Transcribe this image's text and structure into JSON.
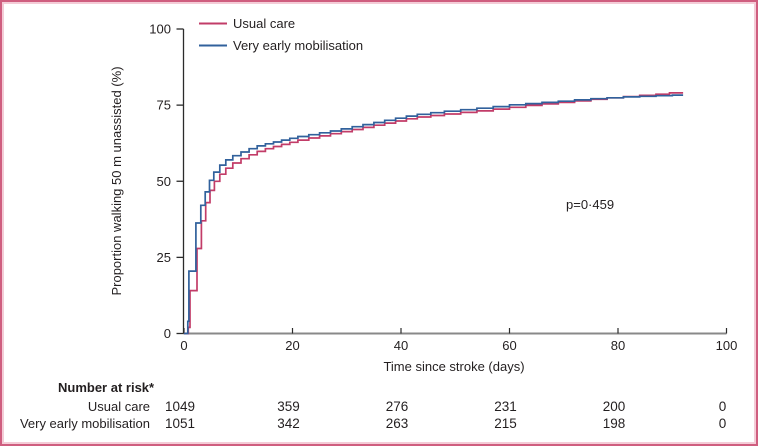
{
  "figure": {
    "border_color": "#cf5e7f",
    "inner_border_color": "#f4ccd7"
  },
  "legend": {
    "items": [
      {
        "label": "Usual care",
        "color": "#c23c68"
      },
      {
        "label": "Very early mobilisation",
        "color": "#31619c"
      }
    ]
  },
  "annotation": {
    "p_value": "p=0·459"
  },
  "chart_data": {
    "type": "line",
    "subtype": "step-cumulative-incidence",
    "title": "",
    "xlabel": "Time since stroke (days)",
    "ylabel": "Proportion walking 50 m unassisted (%)",
    "xlim": [
      0,
      100
    ],
    "ylim": [
      0,
      100
    ],
    "x_ticks": [
      0,
      20,
      40,
      60,
      80,
      100
    ],
    "y_ticks": [
      0,
      25,
      50,
      75,
      100
    ],
    "grid": false,
    "legend_position": "top-left-inside",
    "series": [
      {
        "name": "Usual care",
        "color": "#c23c68",
        "points": [
          [
            0,
            0
          ],
          [
            0.8,
            2
          ],
          [
            1.1,
            14.1
          ],
          [
            2.4,
            27.9
          ],
          [
            3.2,
            37
          ],
          [
            4,
            43
          ],
          [
            4.8,
            47
          ],
          [
            5.6,
            50
          ],
          [
            6.6,
            52.3
          ],
          [
            7.7,
            54.3
          ],
          [
            9,
            56
          ],
          [
            10.5,
            57.4
          ],
          [
            12,
            58.7
          ],
          [
            13.5,
            59.8
          ],
          [
            15,
            60.7
          ],
          [
            16.5,
            61.4
          ],
          [
            18,
            62.1
          ],
          [
            19.5,
            62.8
          ],
          [
            21,
            63.5
          ],
          [
            23,
            64.2
          ],
          [
            25,
            64.9
          ],
          [
            27,
            65.6
          ],
          [
            29,
            66.3
          ],
          [
            31,
            67
          ],
          [
            33,
            67.7
          ],
          [
            35,
            68.4
          ],
          [
            37,
            69.1
          ],
          [
            39,
            69.8
          ],
          [
            41,
            70.5
          ],
          [
            43,
            71.1
          ],
          [
            45.5,
            71.6
          ],
          [
            48,
            72.1
          ],
          [
            51,
            72.6
          ],
          [
            54,
            73.1
          ],
          [
            57,
            73.7
          ],
          [
            60,
            74.3
          ],
          [
            63,
            74.9
          ],
          [
            66,
            75.4
          ],
          [
            69,
            75.9
          ],
          [
            72,
            76.4
          ],
          [
            75,
            76.9
          ],
          [
            78,
            77.4
          ],
          [
            81,
            77.8
          ],
          [
            84,
            78.2
          ],
          [
            87,
            78.6
          ],
          [
            89.5,
            79
          ],
          [
            92,
            79
          ]
        ]
      },
      {
        "name": "Very early mobilisation",
        "color": "#31619c",
        "points": [
          [
            0,
            0
          ],
          [
            0.7,
            4
          ],
          [
            0.9,
            20.5
          ],
          [
            2.2,
            36.3
          ],
          [
            3.1,
            42.1
          ],
          [
            3.9,
            46.5
          ],
          [
            4.7,
            50.3
          ],
          [
            5.5,
            53
          ],
          [
            6.6,
            55.3
          ],
          [
            7.7,
            57
          ],
          [
            9,
            58.4
          ],
          [
            10.5,
            59.6
          ],
          [
            12,
            60.7
          ],
          [
            13.5,
            61.6
          ],
          [
            15,
            62.3
          ],
          [
            16.5,
            62.9
          ],
          [
            18,
            63.5
          ],
          [
            19.5,
            64.1
          ],
          [
            21,
            64.7
          ],
          [
            23,
            65.3
          ],
          [
            25,
            65.9
          ],
          [
            27,
            66.5
          ],
          [
            29,
            67.2
          ],
          [
            31,
            67.9
          ],
          [
            33,
            68.6
          ],
          [
            35,
            69.3
          ],
          [
            37,
            70
          ],
          [
            39,
            70.7
          ],
          [
            41,
            71.4
          ],
          [
            43,
            72
          ],
          [
            45.5,
            72.5
          ],
          [
            48,
            73
          ],
          [
            51,
            73.5
          ],
          [
            54,
            74
          ],
          [
            57,
            74.5
          ],
          [
            60,
            75.1
          ],
          [
            63,
            75.5
          ],
          [
            66,
            75.9
          ],
          [
            69,
            76.3
          ],
          [
            72,
            76.7
          ],
          [
            75,
            77.1
          ],
          [
            78,
            77.4
          ],
          [
            81,
            77.7
          ],
          [
            84,
            77.9
          ],
          [
            87,
            78.1
          ],
          [
            90,
            78.3
          ],
          [
            92,
            78.3
          ]
        ]
      }
    ]
  },
  "risk_table": {
    "header": "Number at risk*",
    "columns_days": [
      0,
      20,
      40,
      60,
      80,
      100
    ],
    "rows": [
      {
        "label": "Usual care",
        "values": [
          "1049",
          "359",
          "276",
          "231",
          "200",
          "0"
        ]
      },
      {
        "label": "Very early mobilisation",
        "values": [
          "1051",
          "342",
          "263",
          "215",
          "198",
          "0"
        ]
      }
    ]
  }
}
